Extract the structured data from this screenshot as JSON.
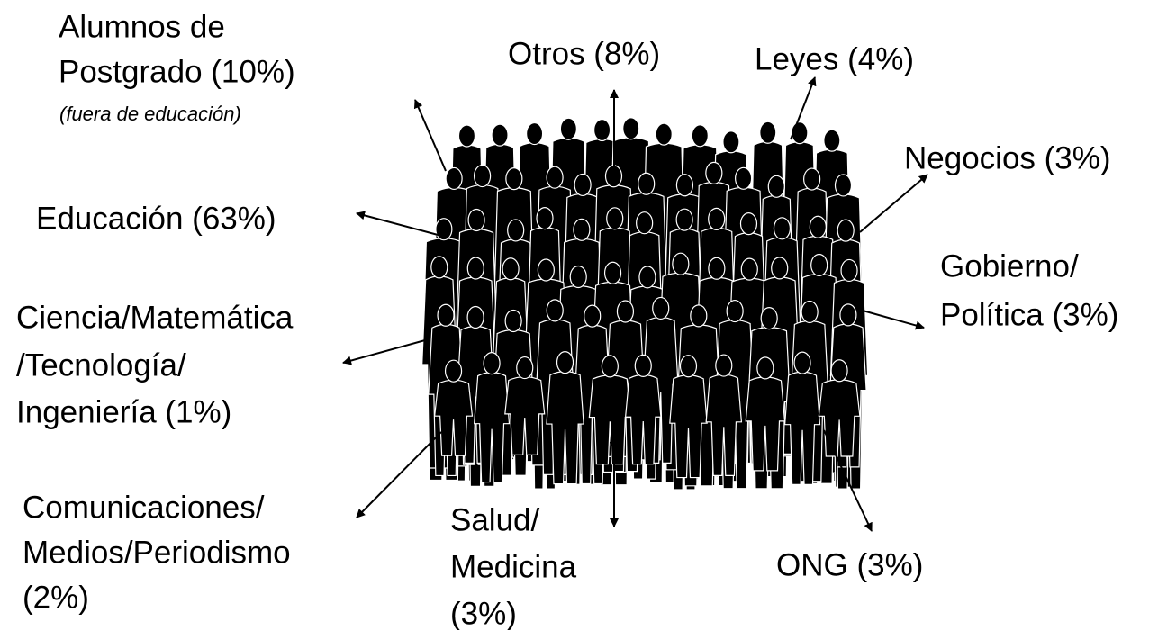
{
  "nodes": [
    {
      "lines": [
        "Alumnos de",
        "Postgrado (10%)"
      ],
      "note": "(fuera de educación)"
    },
    {
      "lines": [
        "Otros (8%)"
      ]
    },
    {
      "lines": [
        "Leyes (4%)"
      ]
    },
    {
      "lines": [
        "Negocios (3%)"
      ]
    },
    {
      "lines": [
        "Educación (63%)"
      ]
    },
    {
      "lines": [
        "Ciencia/Matemática",
        "/Tecnología/",
        "Ingeniería (1%)"
      ]
    },
    {
      "lines": [
        "Gobierno/",
        "Política (3%)"
      ]
    },
    {
      "lines": [
        "Comunicaciones/",
        "Medios/Periodismo",
        "(2%)"
      ]
    },
    {
      "lines": [
        "Salud/",
        "Medicina",
        "(3%)"
      ]
    },
    {
      "lines": [
        "ONG (3%)"
      ]
    }
  ]
}
